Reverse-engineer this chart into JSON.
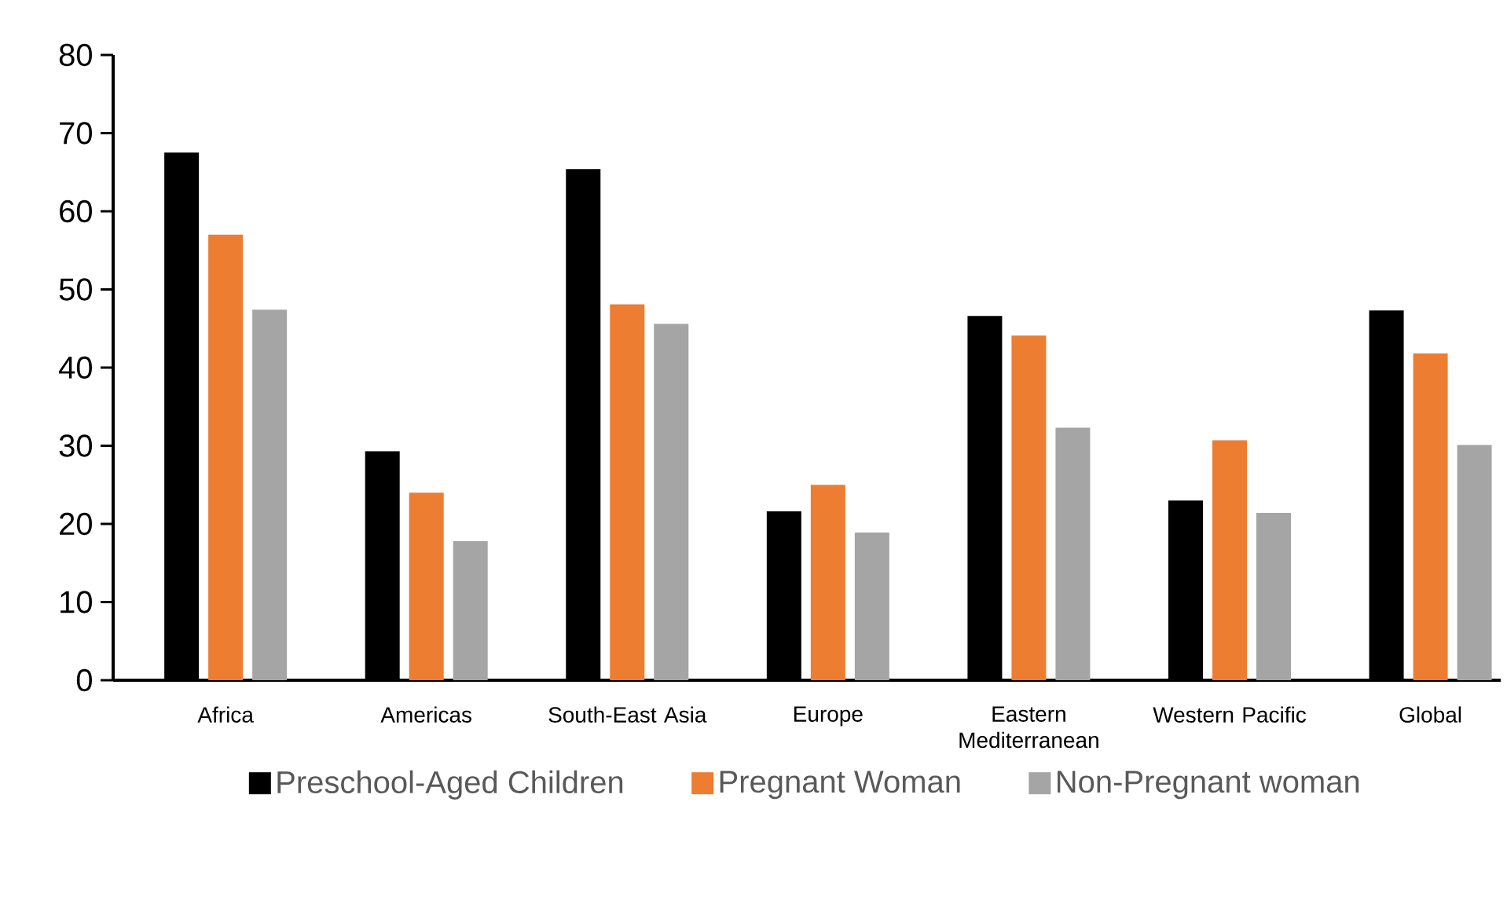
{
  "chart_data": {
    "type": "bar",
    "categories": [
      "Africa",
      "Americas",
      "South-East Asia",
      "Europe",
      "Eastern Mediterranean",
      "Western Pacific",
      "Global"
    ],
    "series": [
      {
        "name": "Preschool-Aged Children",
        "color": "#000000",
        "values": [
          67.5,
          29.3,
          65.4,
          21.6,
          46.6,
          23.0,
          47.3
        ]
      },
      {
        "name": "Pregnant Woman",
        "color": "#ed7d31",
        "values": [
          57.0,
          24.0,
          48.1,
          25.0,
          44.1,
          30.7,
          41.8
        ]
      },
      {
        "name": "Non-Pregnant woman",
        "color": "#a5a5a5",
        "values": [
          47.4,
          17.8,
          45.6,
          18.9,
          32.3,
          21.4,
          30.1
        ]
      }
    ],
    "ylim": [
      0,
      80
    ],
    "yticks": [
      0,
      10,
      20,
      30,
      40,
      50,
      60,
      70,
      80
    ],
    "grid": false,
    "legend": "bottom"
  }
}
